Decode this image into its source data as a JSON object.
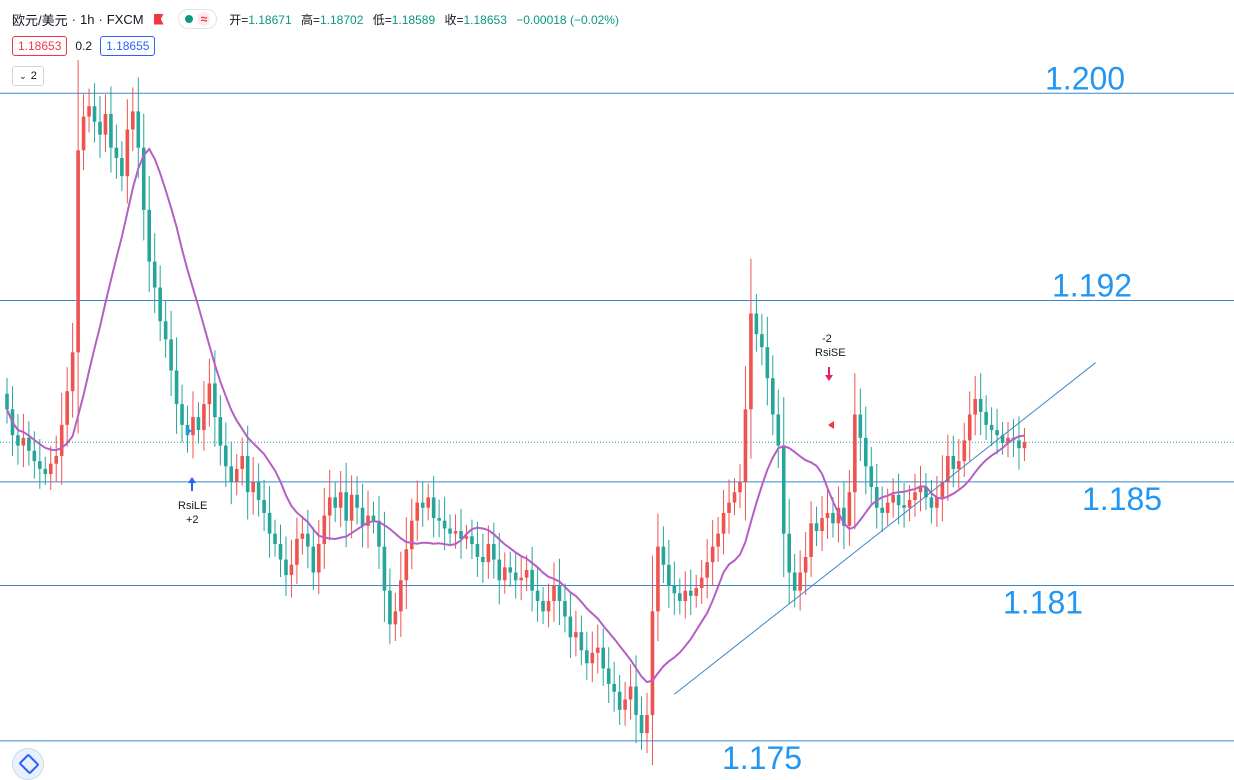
{
  "header": {
    "symbol": "欧元/美元",
    "sep1": "·",
    "interval": "1h",
    "sep2": "·",
    "exchange": "FXCM",
    "open_label": "开=",
    "open": "1.18671",
    "high_label": "高=",
    "high": "1.18702",
    "low_label": "低=",
    "low": "1.18589",
    "close_label": "收=",
    "close": "1.18653",
    "change": "−0.00018 (−0.02%)",
    "status_wave": "≈"
  },
  "trade": {
    "sell": "1.18653",
    "spread": "0.2",
    "buy": "1.18655"
  },
  "indicator_toggle": {
    "count": "2",
    "chevron": "⌄"
  },
  "colors": {
    "up": "#ef5350",
    "down": "#26a69a",
    "ma": "#b55fc5",
    "level_line": "#3a86c8",
    "level_text": "#2196f3",
    "long_arrow": "#2962ff",
    "short_arrow": "#e91e63"
  },
  "chart_data": {
    "type": "candlestick",
    "y_range": [
      1.1738,
      1.2036
    ],
    "horizontal_levels": [
      {
        "price": 1.2,
        "label": "1.200"
      },
      {
        "price": 1.192,
        "label": "1.192"
      },
      {
        "price": 1.185,
        "label": "1.185"
      },
      {
        "price": 1.181,
        "label": "1.181"
      },
      {
        "price": 1.175,
        "label": "1.175"
      }
    ],
    "current_price": 1.18653,
    "trendline": {
      "from": [
        122,
        1.1768
      ],
      "to": [
        199,
        1.1896
      ]
    },
    "closes": [
      1.1878,
      1.1868,
      1.1864,
      1.1867,
      1.1862,
      1.1858,
      1.1855,
      1.1853,
      1.1857,
      1.186,
      1.1872,
      1.1885,
      1.19,
      1.1978,
      1.1991,
      1.1995,
      1.1989,
      1.1984,
      1.1992,
      1.1979,
      1.1975,
      1.1968,
      1.1986,
      1.1993,
      1.1979,
      1.1955,
      1.1935,
      1.1925,
      1.1912,
      1.1905,
      1.1893,
      1.188,
      1.1872,
      1.1868,
      1.1875,
      1.187,
      1.188,
      1.1888,
      1.1875,
      1.1864,
      1.1856,
      1.185,
      1.1855,
      1.186,
      1.1846,
      1.185,
      1.1843,
      1.1838,
      1.183,
      1.1826,
      1.182,
      1.1814,
      1.1818,
      1.1828,
      1.183,
      1.1825,
      1.1815,
      1.1826,
      1.1837,
      1.1844,
      1.184,
      1.1846,
      1.1835,
      1.1845,
      1.184,
      1.1833,
      1.1837,
      1.1835,
      1.1825,
      1.1808,
      1.1795,
      1.18,
      1.1812,
      1.1824,
      1.1835,
      1.1842,
      1.184,
      1.1844,
      1.1836,
      1.1835,
      1.1832,
      1.183,
      1.1831,
      1.1828,
      1.1829,
      1.1826,
      1.1821,
      1.1819,
      1.1826,
      1.182,
      1.1812,
      1.1817,
      1.1815,
      1.1812,
      1.1813,
      1.1816,
      1.1808,
      1.1804,
      1.18,
      1.1804,
      1.181,
      1.1804,
      1.1798,
      1.179,
      1.1792,
      1.1785,
      1.178,
      1.1784,
      1.1786,
      1.1778,
      1.1772,
      1.1769,
      1.1762,
      1.1766,
      1.1771,
      1.176,
      1.1753,
      1.176,
      1.18,
      1.1825,
      1.1818,
      1.181,
      1.1807,
      1.1804,
      1.1808,
      1.1806,
      1.1809,
      1.1813,
      1.1819,
      1.1825,
      1.183,
      1.1838,
      1.1842,
      1.1846,
      1.185,
      1.1878,
      1.1915,
      1.1907,
      1.1902,
      1.189,
      1.1876,
      1.1864,
      1.183,
      1.1815,
      1.1808,
      1.1815,
      1.1821,
      1.1834,
      1.1831,
      1.1836,
      1.1838,
      1.1834,
      1.184,
      1.1833,
      1.1846,
      1.1876,
      1.1867,
      1.1856,
      1.1848,
      1.184,
      1.1838,
      1.1842,
      1.1845,
      1.1841,
      1.184,
      1.1843,
      1.1846,
      1.1848,
      1.1844,
      1.184,
      1.1844,
      1.185,
      1.186,
      1.1855,
      1.1858,
      1.1866,
      1.1876,
      1.1882,
      1.1877,
      1.1872,
      1.187,
      1.1868,
      1.1865,
      1.1867,
      1.1866,
      1.1863,
      1.18653
    ]
  },
  "markers": {
    "long": {
      "label": "RsiLE",
      "qty": "+2"
    },
    "short": {
      "label": "RsiSE",
      "qty": "-2"
    }
  }
}
